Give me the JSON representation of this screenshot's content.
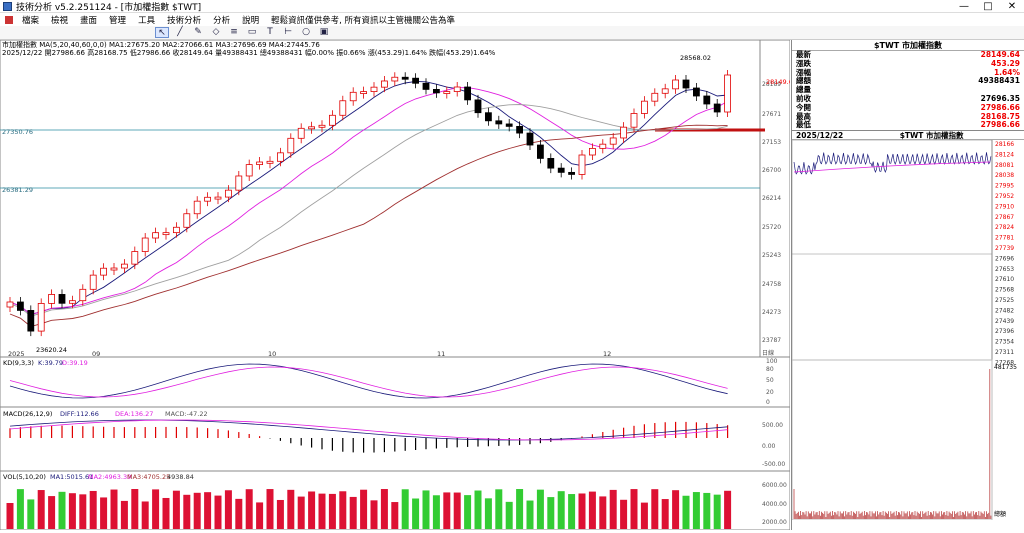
{
  "window": {
    "title": "技術分析 v5.2.251124 - [市加權指數 $TWT]",
    "minimize": "—",
    "maximize": "□",
    "close": "✕"
  },
  "menu": [
    "檔案",
    "檢視",
    "畫面",
    "管理",
    "工具",
    "技術分析",
    "分析",
    "說明",
    "輕鬆資訊僅供參考, 所有資訊以主管機關公告為準"
  ],
  "toolbar": {
    "icons": [
      "cursor-icon",
      "line-tool-icon",
      "pen-icon",
      "shape-icon",
      "fib-icon",
      "rect-icon",
      "text-icon",
      "ruler-icon",
      "circle-icon",
      "save-icon"
    ]
  },
  "info": {
    "line1": "市加權指數  MA(5,20,40,60,0,0)  MA1:27675.20  MA2:27066.61  MA3:27696.69  MA4:27445.76",
    "line2": "2025/12/22  開27986.66  高28168.75  低27986.66  收28149.64  量49388431  總49388431  幅0.00%  振0.66%  漲(453.29)1.64%  跌幅(453.29)1.64%"
  },
  "price_labels": {
    "high_marker": "28568.02",
    "low_marker": "23620.24",
    "hline1": "27350.76",
    "hline2": "26381.29",
    "last": "28149.6"
  },
  "price_axis": [
    "28189",
    "27671",
    "27153",
    "26700",
    "26214",
    "25720",
    "25243",
    "24758",
    "24273",
    "23787",
    "日線"
  ],
  "x_labels": [
    "2025",
    "09",
    "10",
    "11",
    "12"
  ],
  "kd": {
    "label": "KD(9,3,3)",
    "k": "K:39.79",
    "d": "D:39.19",
    "axis": [
      "100",
      "80",
      "50",
      "20",
      "0"
    ]
  },
  "macd": {
    "label": "MACD(26,12,9)",
    "diff": "DIFF:112.66",
    "dea": "DEA:136.27",
    "osc": "MACD:-47.22",
    "axis": [
      "500.00",
      "0.00",
      "-500.00"
    ]
  },
  "vol": {
    "label": "VOL(5,10,20)",
    "ma1": "MA1:5015.61",
    "ma2": "MA2:4963.39",
    "ma3": "MA3:4705.25",
    "cur": "4938.84",
    "axis": [
      "6000.00",
      "4000.00",
      "2000.00"
    ]
  },
  "quote": {
    "title": "$TWT 市加權指數",
    "rows": [
      {
        "k": "最新",
        "v": "28149.64",
        "red": true
      },
      {
        "k": "漲跌",
        "v": "453.29",
        "red": true
      },
      {
        "k": "漲幅",
        "v": "1.64%",
        "red": true
      },
      {
        "k": "總額",
        "v": "49388431",
        "red": false
      },
      {
        "k": "總量",
        "v": "",
        "red": false
      },
      {
        "k": "前收",
        "v": "27696.35",
        "red": false
      },
      {
        "k": "今開",
        "v": "27986.66",
        "red": true
      },
      {
        "k": "最高",
        "v": "28168.75",
        "red": true
      },
      {
        "k": "最低",
        "v": "27986.66",
        "red": true
      }
    ]
  },
  "mini": {
    "date": "2025/12/22",
    "title": "$TWT 市加權指數",
    "axis": [
      "28166",
      "28124",
      "28081",
      "28038",
      "27995",
      "27952",
      "27910",
      "27867",
      "27824",
      "27781",
      "27739",
      "27696",
      "27653",
      "27610",
      "27568",
      "27525",
      "27482",
      "27439",
      "27396",
      "27354",
      "27311",
      "27268"
    ],
    "vol_label": "481735",
    "vol_axis": "總額"
  },
  "colors": {
    "up": "#e00000",
    "down": "#000000",
    "ma5": "#1a1a7a",
    "ma20": "#e020e0",
    "ma40": "#a0a0a0",
    "ma60": "#a03030",
    "hline": "#2a8ca0",
    "vol_up": "#dd1133",
    "vol_down": "#33cc33"
  }
}
